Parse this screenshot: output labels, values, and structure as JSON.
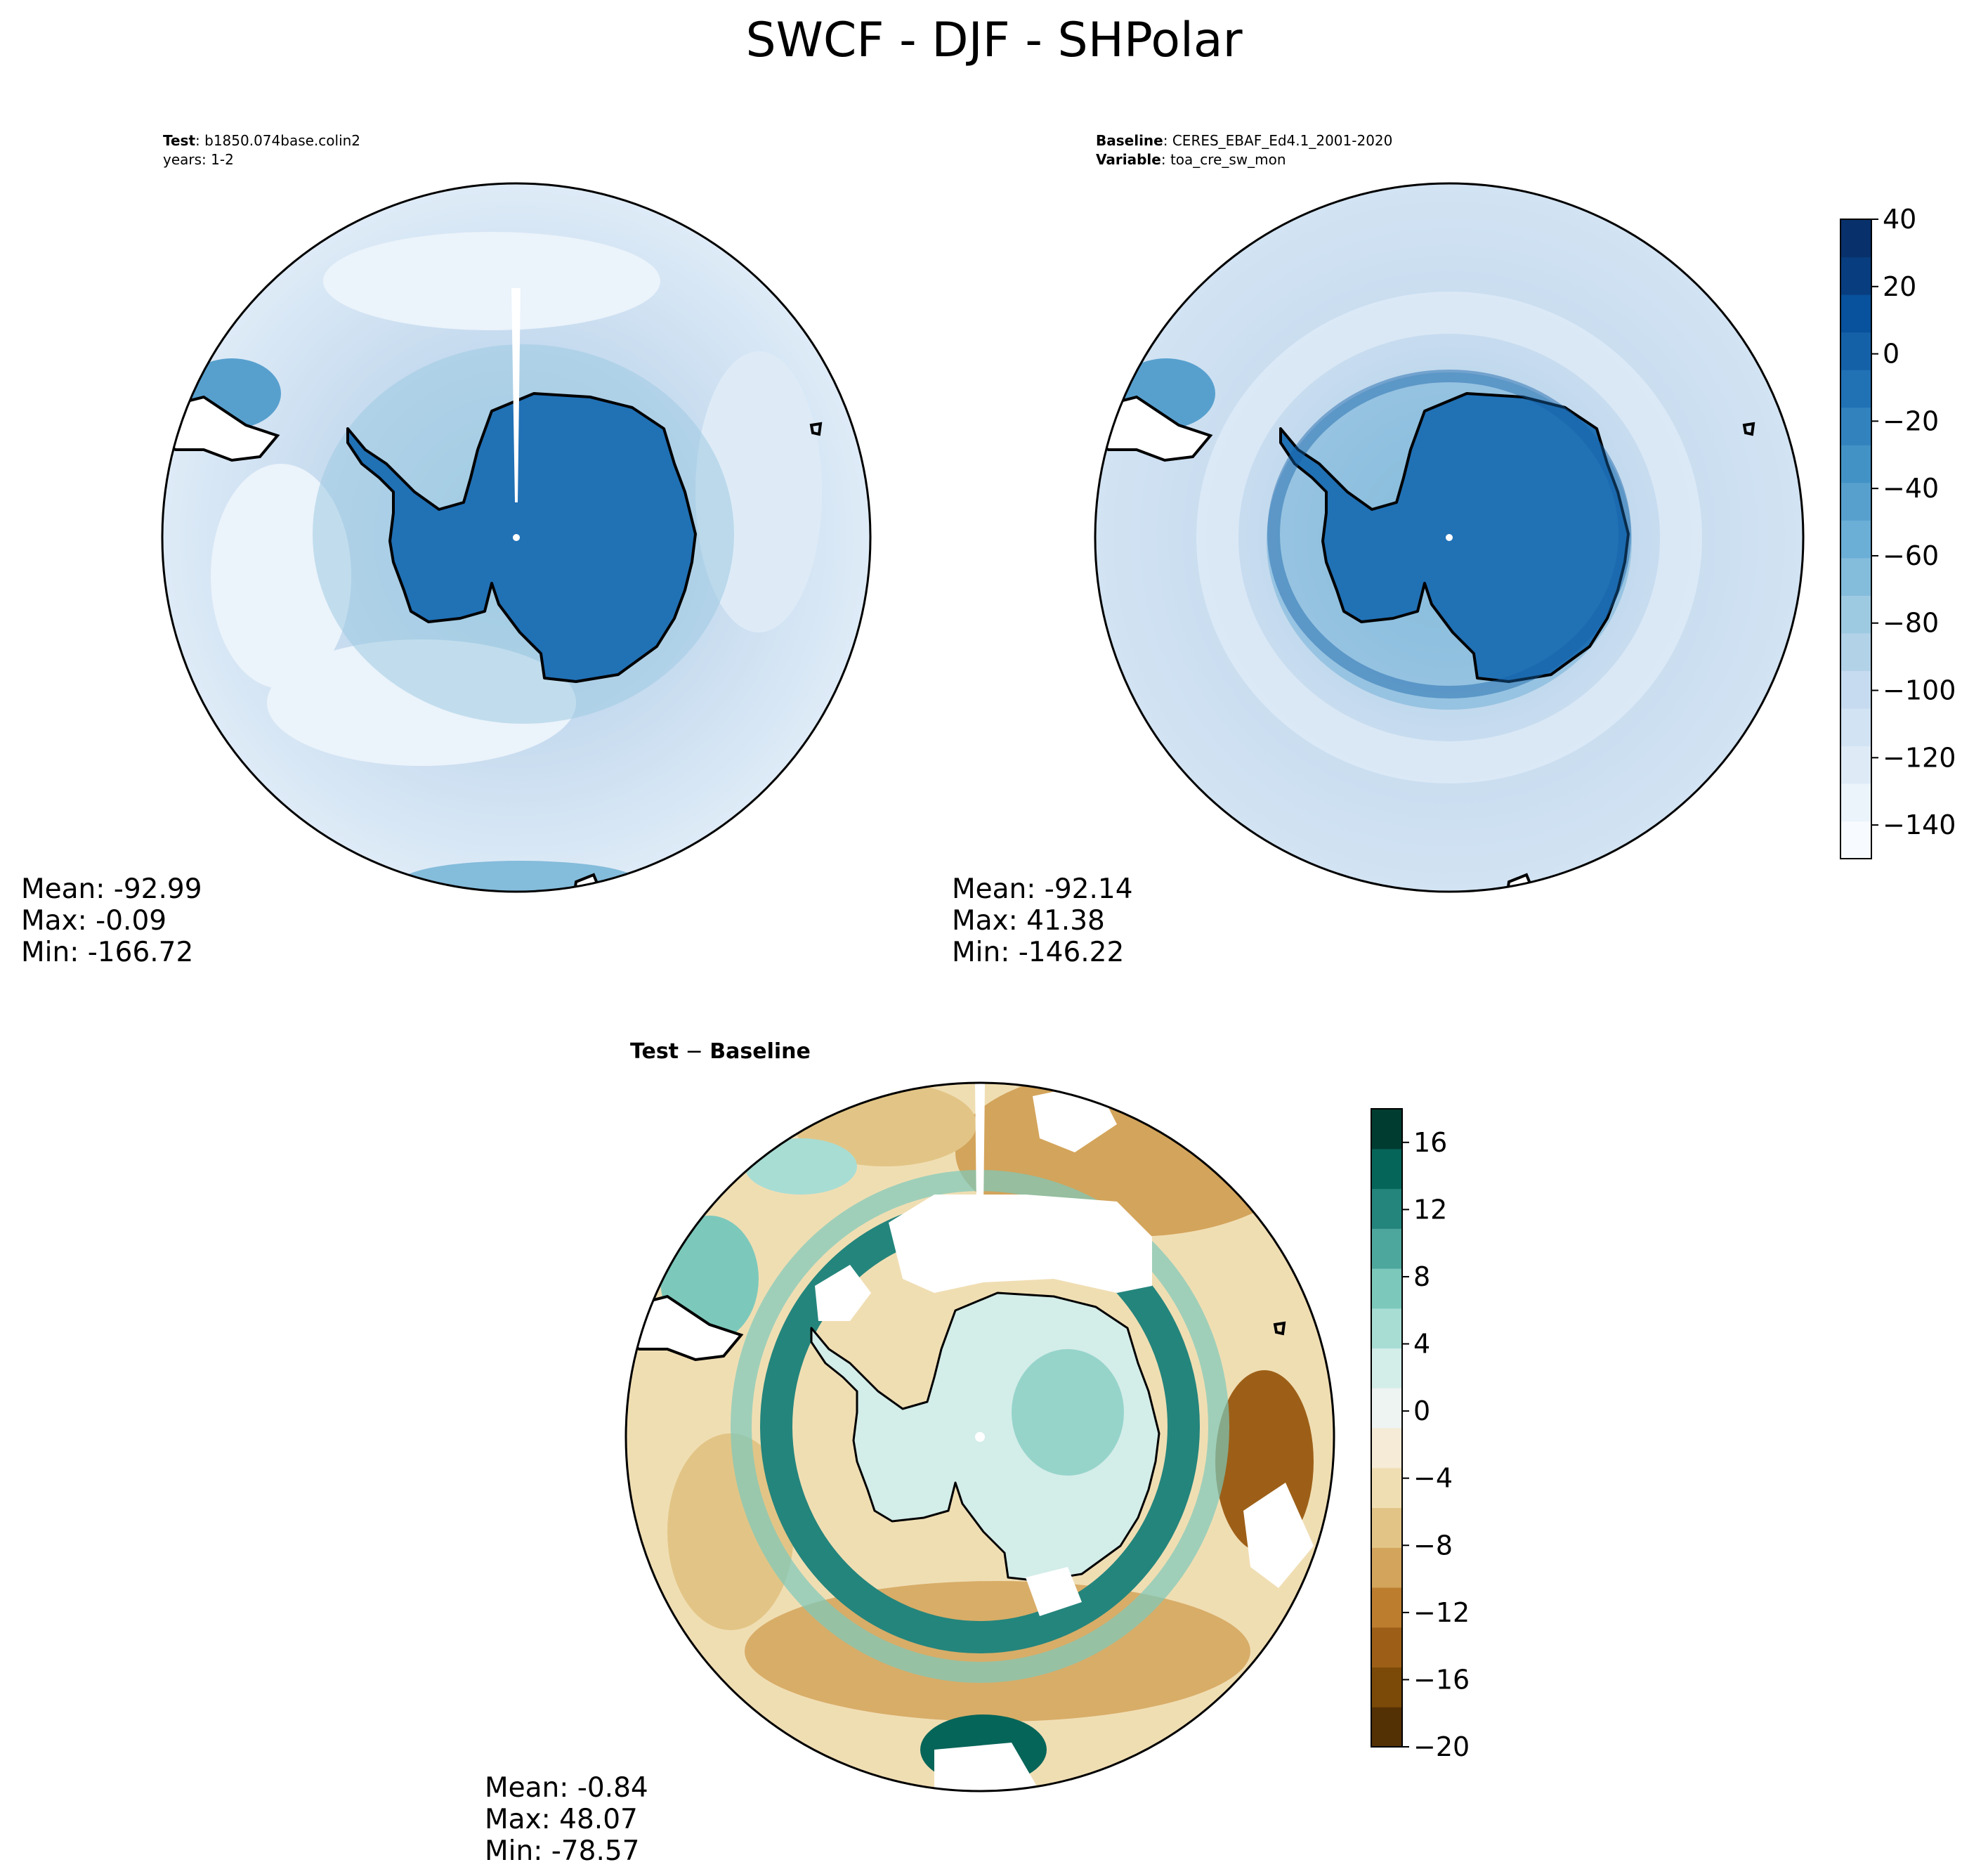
{
  "figure": {
    "title": "SWCF - DJF - SHPolar"
  },
  "panels": {
    "test": {
      "label_bold": "Test",
      "label_sep": ": ",
      "name": "b1850.074base.colin2",
      "years": "years: 1-2",
      "stats": {
        "mean": "Mean: -92.99",
        "max": "Max: -0.09",
        "min": "Min: -166.72"
      }
    },
    "baseline": {
      "label_bold": "Baseline",
      "label_sep": ": ",
      "name": "CERES_EBAF_Ed4.1_2001-2020",
      "var_bold": "Variable",
      "var_value": "toa_cre_sw_mon",
      "stats": {
        "mean": "Mean: -92.14",
        "max": "Max: 41.38",
        "min": "Min: -146.22"
      }
    },
    "diff": {
      "title_a": "Test",
      "title_minus": " − ",
      "title_b": "Baseline",
      "stats": {
        "mean": "Mean: -0.84",
        "max": "Max: 48.07",
        "min": "Min: -78.57"
      }
    }
  },
  "colors": {
    "blues": [
      "#f7fbff",
      "#ebf3fb",
      "#deebf7",
      "#d2e3f3",
      "#c6dbef",
      "#b2d2e8",
      "#9ecae1",
      "#84bcdb",
      "#6baed6",
      "#57a0ce",
      "#4292c6",
      "#3282be",
      "#2171b5",
      "#1461a8",
      "#08519c",
      "#083d7f",
      "#08306b"
    ],
    "brbg": [
      "#543005",
      "#7b4a09",
      "#9d5f17",
      "#bc7d2f",
      "#d3a45b",
      "#e2c586",
      "#f0deb3",
      "#f5ebd6",
      "#eef4f2",
      "#d3ede9",
      "#a8ddd4",
      "#7cc9bc",
      "#4ea79d",
      "#24857c",
      "#066559",
      "#003c30"
    ]
  },
  "chart_data": [
    {
      "type": "heatmap",
      "panel": "test",
      "projection": "south polar stereographic",
      "colorbar_ticks": []
    },
    {
      "type": "heatmap",
      "panel": "baseline",
      "projection": "south polar stereographic",
      "colorbar_range": [
        -150,
        40
      ],
      "colorbar_ticks": [
        "40",
        "20",
        "0",
        "−20",
        "−40",
        "−60",
        "−80",
        "−100",
        "−120",
        "−140"
      ]
    },
    {
      "type": "heatmap",
      "panel": "diff",
      "projection": "south polar stereographic",
      "colorbar_range": [
        -20,
        18
      ],
      "colorbar_ticks": [
        "16",
        "12",
        "8",
        "4",
        "0",
        "−4",
        "−8",
        "−12",
        "−16",
        "−20"
      ]
    }
  ]
}
